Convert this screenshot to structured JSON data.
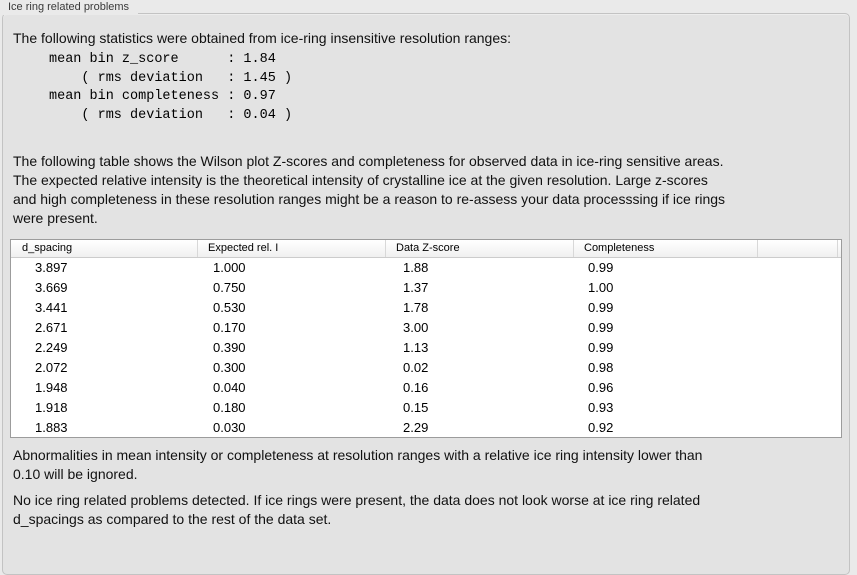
{
  "panel": {
    "title": "Ice ring related problems"
  },
  "intro": "The following statistics were obtained from ice-ring insensitive resolution ranges:",
  "stats_lines": [
    "mean bin z_score      : 1.84",
    "    ( rms deviation   : 1.45 )",
    "mean bin completeness : 0.97",
    "    ( rms deviation   : 0.04 )"
  ],
  "stats": {
    "mean_bin_z_score": "1.84",
    "z_score_rms_deviation": "1.45",
    "mean_bin_completeness": "0.97",
    "completeness_rms_deviation": "0.04"
  },
  "description_lines": [
    "The following table shows the Wilson plot Z-scores and completeness for observed data in ice-ring sensitive areas.",
    "The expected relative intensity is the theoretical intensity of crystalline ice at the given resolution. Large z-scores",
    "and high completeness in these resolution ranges might be a reason to re-assess your data processsing if ice rings",
    "were present."
  ],
  "table": {
    "columns": [
      "d_spacing",
      "Expected rel. I",
      "Data Z-score",
      "Completeness",
      ""
    ],
    "rows": [
      [
        "3.897",
        "1.000",
        "1.88",
        "0.99"
      ],
      [
        "3.669",
        "0.750",
        "1.37",
        "1.00"
      ],
      [
        "3.441",
        "0.530",
        "1.78",
        "0.99"
      ],
      [
        "2.671",
        "0.170",
        "3.00",
        "0.99"
      ],
      [
        "2.249",
        "0.390",
        "1.13",
        "0.99"
      ],
      [
        "2.072",
        "0.300",
        "0.02",
        "0.98"
      ],
      [
        "1.948",
        "0.040",
        "0.16",
        "0.96"
      ],
      [
        "1.918",
        "0.180",
        "0.15",
        "0.93"
      ],
      [
        "1.883",
        "0.030",
        "2.29",
        "0.92"
      ]
    ]
  },
  "ignore_note_lines": [
    "Abnormalities in mean intensity or completeness at resolution ranges with a relative ice ring intensity lower than",
    "0.10 will be ignored."
  ],
  "conclusion_lines": [
    "No ice ring related problems detected. If ice rings were present, the data does not look worse at ice ring related",
    "d_spacings as compared to the rest of the data set."
  ],
  "colors": {
    "window_background": "#eaeaea",
    "groupbox_background": "#e3e3e3",
    "table_background": "#ffffff"
  }
}
